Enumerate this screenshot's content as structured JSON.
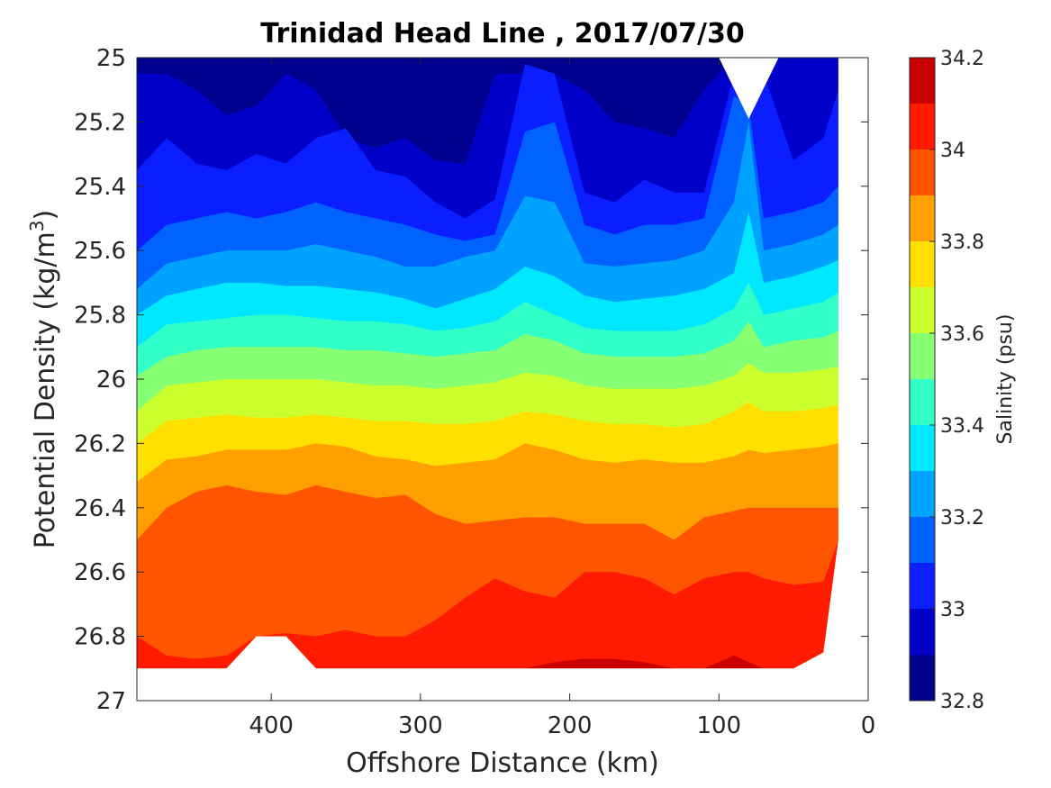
{
  "chart_data": {
    "type": "contour",
    "title": "Trinidad Head Line , 2017/07/30",
    "xlabel": "Offshore Distance (km)",
    "ylabel_main": "Potential Density (kg/m",
    "ylabel_sup": "3",
    "ylabel_close": ")",
    "xlim": [
      490,
      0
    ],
    "ylim": [
      25,
      27
    ],
    "x_reversed": true,
    "y_reversed": true,
    "x_ticks": [
      400,
      300,
      200,
      100,
      0
    ],
    "x_tick_labels": [
      "400",
      "300",
      "200",
      "100",
      "0"
    ],
    "y_ticks": [
      25,
      25.2,
      25.4,
      25.6,
      25.8,
      26,
      26.2,
      26.4,
      26.6,
      26.8,
      27
    ],
    "y_tick_labels": [
      "25",
      "25.2",
      "25.4",
      "25.6",
      "25.8",
      "26",
      "26.2",
      "26.4",
      "26.6",
      "26.8",
      "27"
    ],
    "grid": false,
    "colorbar": {
      "label": "Salinity (psu)",
      "lim": [
        32.8,
        34.2
      ],
      "levels": [
        32.8,
        32.9,
        33.0,
        33.1,
        33.2,
        33.3,
        33.4,
        33.5,
        33.6,
        33.7,
        33.8,
        33.9,
        34.0,
        34.1,
        34.2
      ],
      "tick_values": [
        32.8,
        33,
        33.2,
        33.4,
        33.6,
        33.8,
        34,
        34.2
      ],
      "tick_labels": [
        "32.8",
        "33",
        "33.2",
        "33.4",
        "33.6",
        "33.8",
        "34",
        "34.2"
      ],
      "colormap": "jet",
      "colors": [
        "#00008f",
        "#0000c8",
        "#0a1eff",
        "#0062ff",
        "#00a2ff",
        "#00e8ff",
        "#30ffc8",
        "#86ff72",
        "#cbff2d",
        "#ffe000",
        "#ffa000",
        "#ff5500",
        "#ff1a00",
        "#c80000"
      ]
    },
    "stations_x_km": [
      490,
      470,
      450,
      430,
      410,
      390,
      370,
      350,
      330,
      310,
      290,
      270,
      250,
      230,
      210,
      190,
      170,
      150,
      130,
      110,
      90,
      80,
      70,
      50,
      30,
      20
    ],
    "isolines": [
      {
        "value": 33.0,
        "y": [
          25.05,
          25.05,
          25.1,
          25.18,
          25.15,
          25.05,
          25.1,
          25.25,
          25.28,
          25.25,
          25.32,
          25.33,
          25.05,
          25.05,
          25.05,
          25.1,
          25.2,
          25.22,
          25.25,
          25.1,
          25.0,
          25.0,
          25.0,
          25.0,
          25.0,
          25.0
        ]
      },
      {
        "value": 33.1,
        "y": [
          25.35,
          25.25,
          25.33,
          25.35,
          25.3,
          25.33,
          25.25,
          25.22,
          25.35,
          25.37,
          25.45,
          25.5,
          25.44,
          25.02,
          25.05,
          25.42,
          25.45,
          25.38,
          25.42,
          25.42,
          25.05,
          25.12,
          25.05,
          25.32,
          25.25,
          25.1
        ]
      },
      {
        "value": 33.2,
        "y": [
          25.6,
          25.52,
          25.5,
          25.48,
          25.5,
          25.48,
          25.45,
          25.48,
          25.5,
          25.52,
          25.55,
          25.57,
          25.55,
          25.23,
          25.2,
          25.52,
          25.55,
          25.52,
          25.52,
          25.5,
          25.12,
          25.15,
          25.5,
          25.48,
          25.45,
          25.4
        ]
      },
      {
        "value": 33.3,
        "y": [
          25.72,
          25.64,
          25.62,
          25.6,
          25.6,
          25.6,
          25.58,
          25.6,
          25.62,
          25.65,
          25.65,
          25.62,
          25.6,
          25.43,
          25.45,
          25.64,
          25.65,
          25.64,
          25.63,
          25.6,
          25.45,
          25.2,
          25.6,
          25.58,
          25.55,
          25.52
        ]
      },
      {
        "value": 33.4,
        "y": [
          25.8,
          25.74,
          25.72,
          25.7,
          25.7,
          25.71,
          25.71,
          25.72,
          25.73,
          25.75,
          25.78,
          25.75,
          25.72,
          25.65,
          25.68,
          25.74,
          25.76,
          25.75,
          25.74,
          25.72,
          25.67,
          25.48,
          25.7,
          25.68,
          25.65,
          25.63
        ]
      },
      {
        "value": 33.5,
        "y": [
          25.9,
          25.83,
          25.82,
          25.81,
          25.8,
          25.8,
          25.81,
          25.82,
          25.82,
          25.83,
          25.85,
          25.84,
          25.82,
          25.76,
          25.8,
          25.84,
          25.85,
          25.85,
          25.85,
          25.83,
          25.78,
          25.7,
          25.8,
          25.78,
          25.76,
          25.73
        ]
      },
      {
        "value": 33.6,
        "y": [
          25.99,
          25.93,
          25.91,
          25.9,
          25.9,
          25.9,
          25.9,
          25.91,
          25.91,
          25.92,
          25.93,
          25.92,
          25.91,
          25.86,
          25.88,
          25.92,
          25.93,
          25.93,
          25.93,
          25.92,
          25.88,
          25.82,
          25.9,
          25.88,
          25.87,
          25.85
        ]
      },
      {
        "value": 33.7,
        "y": [
          26.1,
          26.02,
          26.01,
          26.0,
          26.0,
          26.0,
          26.0,
          26.01,
          26.02,
          26.02,
          26.03,
          26.02,
          26.01,
          25.98,
          25.99,
          26.02,
          26.03,
          26.03,
          26.03,
          26.02,
          25.99,
          25.95,
          25.98,
          25.98,
          25.97,
          25.96
        ]
      },
      {
        "value": 33.8,
        "y": [
          26.2,
          26.13,
          26.12,
          26.11,
          26.12,
          26.12,
          26.11,
          26.12,
          26.13,
          26.13,
          26.14,
          26.14,
          26.13,
          26.1,
          26.11,
          26.13,
          26.14,
          26.14,
          26.15,
          26.14,
          26.1,
          26.07,
          26.1,
          26.1,
          26.09,
          26.08
        ]
      },
      {
        "value": 33.9,
        "y": [
          26.32,
          26.25,
          26.24,
          26.22,
          26.22,
          26.22,
          26.2,
          26.21,
          26.24,
          26.25,
          26.27,
          26.26,
          26.25,
          26.2,
          26.22,
          26.25,
          26.26,
          26.25,
          26.26,
          26.26,
          26.24,
          26.22,
          26.23,
          26.22,
          26.21,
          26.2
        ]
      },
      {
        "value": 34.0,
        "y": [
          26.5,
          26.4,
          26.35,
          26.33,
          26.35,
          26.36,
          26.33,
          26.35,
          26.37,
          26.36,
          26.42,
          26.45,
          26.44,
          26.43,
          26.43,
          26.45,
          26.45,
          26.45,
          26.5,
          26.43,
          26.41,
          26.4,
          26.4,
          26.4,
          26.4,
          26.4
        ]
      },
      {
        "value": 34.1,
        "y": [
          26.8,
          26.86,
          26.87,
          26.86,
          26.83,
          26.79,
          26.8,
          26.78,
          26.8,
          26.8,
          26.75,
          26.68,
          26.62,
          26.66,
          26.68,
          26.6,
          26.6,
          26.62,
          26.67,
          26.62,
          26.6,
          26.6,
          26.62,
          26.64,
          26.63,
          26.6
        ]
      },
      {
        "value": 34.2,
        "y": [
          26.9,
          26.9,
          26.9,
          26.9,
          26.9,
          26.9,
          26.9,
          26.9,
          26.9,
          26.9,
          26.9,
          26.9,
          26.9,
          26.9,
          26.88,
          26.87,
          26.87,
          26.88,
          26.9,
          26.9,
          26.86,
          26.88,
          26.9,
          26.9,
          26.9,
          26.9
        ]
      }
    ],
    "bottom_boundary_y": [
      26.9,
      26.9,
      26.9,
      26.9,
      26.8,
      26.8,
      26.9,
      26.9,
      26.9,
      26.9,
      26.9,
      26.9,
      26.9,
      26.9,
      26.9,
      26.9,
      26.9,
      26.9,
      26.9,
      26.9,
      26.9,
      26.9,
      26.9,
      26.9,
      26.85,
      26.5
    ],
    "top_notch_km": [
      100,
      80,
      60
    ],
    "top_notch_depth": 25.19
  }
}
